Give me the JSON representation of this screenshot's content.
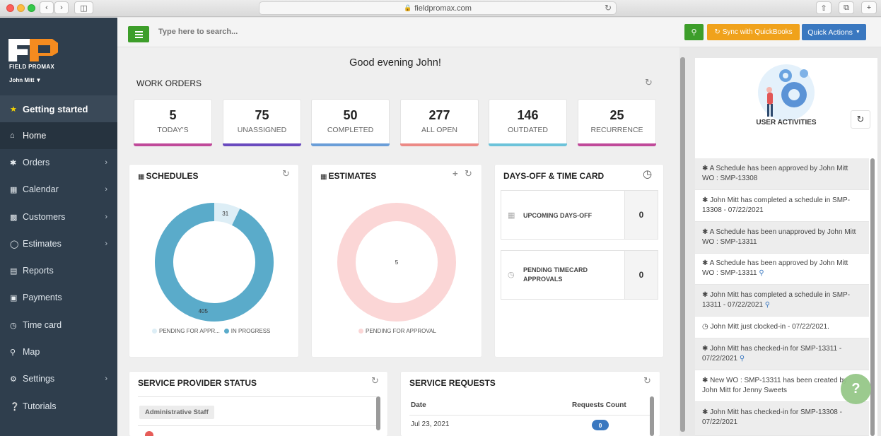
{
  "browser": {
    "url": "fieldpromax.com"
  },
  "brand": {
    "name": "FIELD PROMAX",
    "user": "John Mitt"
  },
  "sidebar": {
    "items": [
      {
        "label": "Getting started",
        "icon": "star-icon"
      },
      {
        "label": "Home",
        "icon": "home-icon"
      },
      {
        "label": "Orders",
        "icon": "asterisk-icon"
      },
      {
        "label": "Calendar",
        "icon": "calendar-icon"
      },
      {
        "label": "Customers",
        "icon": "user-card-icon"
      },
      {
        "label": "Estimates",
        "icon": "circle-icon"
      },
      {
        "label": "Reports",
        "icon": "chart-icon"
      },
      {
        "label": "Payments",
        "icon": "money-icon"
      },
      {
        "label": "Time card",
        "icon": "clock-icon"
      },
      {
        "label": "Map",
        "icon": "map-pin-icon"
      },
      {
        "label": "Settings",
        "icon": "gear-icon"
      },
      {
        "label": "Tutorials",
        "icon": "question-icon"
      }
    ]
  },
  "topbar": {
    "search_placeholder": "Type here to search...",
    "sync_label": "Sync with QuickBooks",
    "quick_actions_label": "Quick Actions"
  },
  "greeting": "Good evening John!",
  "work_orders": {
    "title": "WORK ORDERS",
    "stats": [
      {
        "value": "5",
        "label": "TODAY'S",
        "color": "#c04a9a"
      },
      {
        "value": "75",
        "label": "UNASSIGNED",
        "color": "#6a4bbf"
      },
      {
        "value": "50",
        "label": "COMPLETED",
        "color": "#6a9ed8"
      },
      {
        "value": "277",
        "label": "ALL OPEN",
        "color": "#ec8a86"
      },
      {
        "value": "146",
        "label": "OUTDATED",
        "color": "#6cc3da"
      },
      {
        "value": "25",
        "label": "RECURRENCE",
        "color": "#c04a9a"
      }
    ]
  },
  "schedules": {
    "title": "SCHEDULES",
    "legend": [
      "PENDING FOR APPR...",
      "IN PROGRESS"
    ],
    "colors": {
      "pending": "#ddeef6",
      "in_progress": "#5aabca"
    }
  },
  "estimates": {
    "title": "ESTIMATES",
    "legend": [
      "PENDING FOR APPROVAL"
    ],
    "colors": {
      "pending": "#fbd6d6"
    }
  },
  "days_off": {
    "title": "DAYS-OFF & TIME CARD",
    "rows": [
      {
        "label": "UPCOMING DAYS-OFF",
        "count": "0"
      },
      {
        "label": "PENDING TIMECARD APPROVALS",
        "count": "0"
      }
    ]
  },
  "service_provider": {
    "title": "SERVICE PROVIDER STATUS",
    "group": "Administrative Staff"
  },
  "service_requests": {
    "title": "SERVICE REQUESTS",
    "columns": [
      "Date",
      "Requests Count"
    ],
    "rows": [
      {
        "date": "Jul 23, 2021",
        "count": "0"
      }
    ]
  },
  "user_activities": {
    "title": "USER ACTIVITIES",
    "items": [
      {
        "text": "A Schedule has been approved by John Mitt WO : SMP-13308",
        "pin": false
      },
      {
        "text": "John Mitt has completed a schedule in SMP-13308 - 07/22/2021",
        "pin": false
      },
      {
        "text": "A Schedule has been unapproved by John Mitt WO : SMP-13311",
        "pin": false
      },
      {
        "text": "A Schedule has been approved by John Mitt WO : SMP-13311",
        "pin": true
      },
      {
        "text": "John Mitt has completed a schedule in SMP-13311 - 07/22/2021",
        "pin": true
      },
      {
        "text": "John Mitt just clocked-in - 07/22/2021.",
        "pin": false
      },
      {
        "text": "John Mitt has checked-in for SMP-13311 - 07/22/2021",
        "pin": true
      },
      {
        "text": "New WO : SMP-13311 has been created by John Mitt for Jenny Sweets",
        "pin": false
      },
      {
        "text": "John Mitt has checked-in for SMP-13308 - 07/22/2021",
        "pin": false
      }
    ]
  },
  "chart_data": [
    {
      "type": "pie",
      "title": "SCHEDULES",
      "categories": [
        "PENDING FOR APPR...",
        "IN PROGRESS"
      ],
      "values": [
        31,
        405
      ]
    },
    {
      "type": "pie",
      "title": "ESTIMATES",
      "categories": [
        "PENDING FOR APPROVAL"
      ],
      "values": [
        5
      ]
    }
  ]
}
